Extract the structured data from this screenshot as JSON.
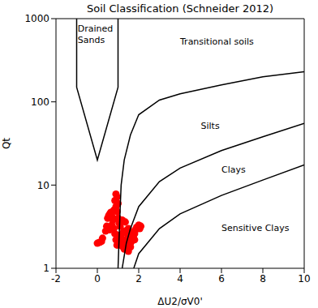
{
  "chart_data": {
    "type": "scatter",
    "title": "Soil Classification (Schneider 2012)",
    "x_label": "ΔU2/σV0'",
    "y_label": "Qt",
    "xlim": [
      -2,
      10
    ],
    "xticks": [
      -2,
      0,
      2,
      4,
      6,
      8,
      10
    ],
    "ylim": [
      1,
      1000
    ],
    "yticks": [
      1,
      10,
      100,
      1000
    ],
    "log": "y",
    "series": [
      {
        "type": "scatter",
        "color": "#ff0000",
        "marker": "circle",
        "x": [
          0.0,
          0.1,
          0.2,
          0.25,
          0.4,
          0.45,
          0.5,
          0.55,
          0.6,
          0.65,
          0.7,
          0.75,
          0.8,
          0.85,
          0.9,
          0.95,
          1.0,
          0.8,
          0.85,
          0.9,
          0.95,
          1.0,
          1.05,
          0.9,
          0.95,
          1.0,
          1.1,
          1.15,
          1.2,
          1.25,
          1.3,
          1.35,
          1.4,
          1.45,
          1.5,
          1.55,
          1.6,
          1.65,
          1.7,
          1.75,
          1.8,
          1.85,
          1.9,
          2.0,
          2.05,
          2.1,
          1.2,
          1.3,
          1.4,
          1.5,
          1.6,
          1.7,
          1.1,
          1.0,
          0.7,
          0.6,
          1.25,
          1.35,
          1.5,
          1.8
        ],
        "y": [
          2.0,
          2.05,
          2.1,
          2.3,
          2.8,
          3.2,
          4.0,
          4.3,
          4.5,
          4.7,
          4.2,
          3.8,
          5.0,
          6.5,
          7.8,
          7.2,
          6.0,
          3.0,
          2.6,
          2.2,
          1.9,
          2.5,
          3.5,
          5.5,
          4.8,
          4.0,
          3.2,
          2.4,
          2.0,
          1.8,
          1.7,
          1.9,
          2.2,
          2.6,
          2.4,
          2.0,
          1.8,
          2.1,
          2.5,
          2.3,
          2.6,
          2.9,
          3.1,
          3.3,
          3.0,
          3.2,
          3.8,
          2.8,
          1.7,
          1.6,
          2.0,
          2.7,
          1.9,
          2.2,
          3.3,
          2.9,
          2.7,
          3.6,
          3.0,
          2.2
        ]
      },
      {
        "type": "line",
        "color": "#000000",
        "line_style": "solid",
        "x": [
          -1,
          -1,
          0,
          1,
          1
        ],
        "y": [
          1000,
          150,
          20,
          150,
          1000
        ]
      },
      {
        "type": "line",
        "color": "#000000",
        "line_style": "solid",
        "x": [
          1.0,
          1.1,
          1.15,
          1.3,
          1.6,
          2,
          3,
          4,
          6,
          8,
          10
        ],
        "y": [
          1,
          5,
          10,
          20,
          40,
          70,
          105,
          125,
          160,
          200,
          230
        ]
      },
      {
        "type": "line",
        "color": "#000000",
        "line_style": "solid",
        "x": [
          1.2,
          1.4,
          1.6,
          2,
          3,
          4,
          6,
          8,
          10
        ],
        "y": [
          1,
          2,
          3,
          5.5,
          11,
          16,
          26,
          38,
          55
        ]
      },
      {
        "type": "line",
        "color": "#000000",
        "line_style": "solid",
        "x": [
          1.76,
          2,
          3,
          4,
          6,
          8,
          10
        ],
        "y": [
          1,
          1.5,
          3,
          4.5,
          7.5,
          11.5,
          17.5
        ]
      }
    ],
    "annotations": [
      {
        "text": "Drained\nSands",
        "x": -0.95,
        "y": 760
      },
      {
        "text": "Transitional soils",
        "x": 4,
        "y": 530
      },
      {
        "text": "Silts",
        "x": 5,
        "y": 52
      },
      {
        "text": "Clays",
        "x": 6,
        "y": 15.5
      },
      {
        "text": "Sensitive Clays",
        "x": 6,
        "y": 3.1
      }
    ]
  }
}
